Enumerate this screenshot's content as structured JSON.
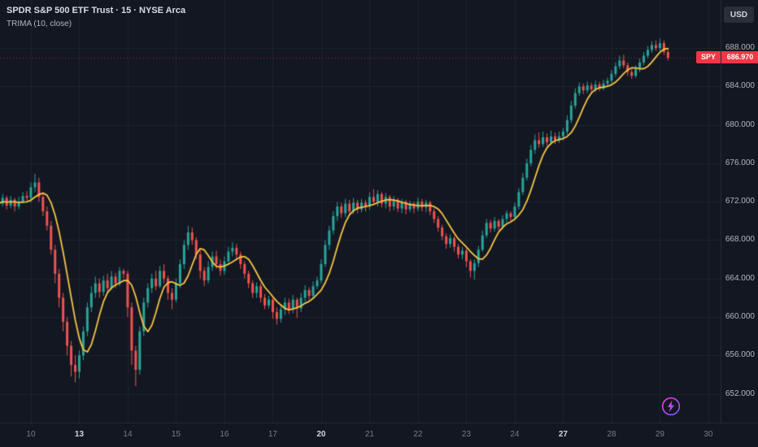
{
  "header": {
    "legend": {
      "title": "SPDR S&P 500 ETF Trust · 15 · NYSE Arca",
      "indicator": "TRIMA (10, close)"
    },
    "currency_button": "USD"
  },
  "icons": {
    "boost": "lightning-bolt-in-circle",
    "boost_gradient": [
      "#f93ae2",
      "#7a5cff"
    ]
  },
  "chart_data": {
    "type": "candlestick",
    "symbol": "SPY",
    "description": "SPDR S&P 500 ETF Trust",
    "interval": "15",
    "exchange": "NYSE Arca",
    "overlay": {
      "name": "TRIMA",
      "period": 10,
      "source": "close",
      "color": "#f5c542"
    },
    "last_price": {
      "symbol": "SPY",
      "value": 686.97,
      "label": "686.970",
      "direction_color": "#f23645"
    },
    "colors": {
      "background": "#131722",
      "grid": "#1e222d",
      "up": "#26a69a",
      "down": "#ef5350",
      "axis_text": "#b2b5be",
      "axis_text_emphasis": "#d1d4dc"
    },
    "y_axis": {
      "ylim": [
        649,
        693
      ],
      "ticks": [
        {
          "value": 688,
          "label": "688.000"
        },
        {
          "value": 684,
          "label": "684.000"
        },
        {
          "value": 680,
          "label": "680.000"
        },
        {
          "value": 676,
          "label": "676.000"
        },
        {
          "value": 672,
          "label": "672.000"
        },
        {
          "value": 668,
          "label": "668.000"
        },
        {
          "value": 664,
          "label": "664.000"
        },
        {
          "value": 660,
          "label": "660.000"
        },
        {
          "value": 656,
          "label": "656.000"
        },
        {
          "value": 652,
          "label": "652.000"
        }
      ]
    },
    "x_axis": {
      "ticks": [
        {
          "label": "10",
          "index": 8,
          "emphasis": false
        },
        {
          "label": "13",
          "index": 20,
          "emphasis": true
        },
        {
          "label": "14",
          "index": 32,
          "emphasis": false
        },
        {
          "label": "15",
          "index": 44,
          "emphasis": false
        },
        {
          "label": "16",
          "index": 56,
          "emphasis": false
        },
        {
          "label": "17",
          "index": 68,
          "emphasis": false
        },
        {
          "label": "20",
          "index": 80,
          "emphasis": true
        },
        {
          "label": "21",
          "index": 92,
          "emphasis": false
        },
        {
          "label": "22",
          "index": 104,
          "emphasis": false
        },
        {
          "label": "23",
          "index": 116,
          "emphasis": false
        },
        {
          "label": "24",
          "index": 128,
          "emphasis": false
        },
        {
          "label": "27",
          "index": 140,
          "emphasis": true
        },
        {
          "label": "28",
          "index": 152,
          "emphasis": false
        },
        {
          "label": "29",
          "index": 164,
          "emphasis": false
        },
        {
          "label": "30",
          "index": 176,
          "emphasis": false
        }
      ]
    },
    "candles": {
      "format": [
        "open",
        "high",
        "low",
        "close"
      ],
      "values": [
        [
          672.3,
          672.8,
          671.4,
          671.8
        ],
        [
          671.8,
          672.8,
          671.5,
          672.4
        ],
        [
          672.4,
          672.6,
          671.2,
          671.6
        ],
        [
          671.6,
          672.6,
          671.3,
          672.2
        ],
        [
          672.2,
          672.4,
          671.0,
          671.5
        ],
        [
          671.5,
          672.5,
          671.2,
          672.0
        ],
        [
          672.0,
          673.0,
          671.8,
          672.6
        ],
        [
          672.6,
          673.1,
          672.1,
          672.4
        ],
        [
          672.4,
          674.0,
          671.9,
          673.5
        ],
        [
          673.5,
          674.9,
          673.0,
          674.0
        ],
        [
          674.0,
          674.5,
          672.0,
          672.5
        ],
        [
          672.5,
          673.0,
          670.5,
          671.0
        ],
        [
          671.0,
          671.5,
          669.0,
          669.5
        ],
        [
          669.5,
          670.0,
          666.5,
          667.0
        ],
        [
          667.0,
          667.5,
          663.5,
          664.5
        ],
        [
          664.5,
          665.0,
          661.0,
          662.0
        ],
        [
          662.0,
          662.5,
          658.5,
          659.5
        ],
        [
          659.5,
          660.0,
          656.0,
          657.0
        ],
        [
          657.0,
          657.5,
          653.8,
          655.0
        ],
        [
          655.0,
          656.0,
          653.2,
          654.3
        ],
        [
          654.3,
          656.5,
          653.6,
          656.0
        ],
        [
          656.0,
          659.0,
          655.5,
          658.5
        ],
        [
          658.5,
          661.5,
          658.0,
          661.0
        ],
        [
          661.0,
          663.2,
          660.5,
          662.5
        ],
        [
          662.5,
          664.2,
          662.0,
          663.5
        ],
        [
          663.5,
          664.0,
          662.0,
          662.6
        ],
        [
          662.6,
          664.3,
          662.2,
          663.8
        ],
        [
          663.8,
          664.5,
          662.5,
          663.0
        ],
        [
          663.0,
          664.8,
          662.8,
          664.2
        ],
        [
          664.2,
          664.6,
          663.0,
          663.5
        ],
        [
          663.5,
          665.2,
          663.2,
          664.8
        ],
        [
          664.8,
          665.0,
          664.0,
          664.5
        ],
        [
          664.5,
          664.8,
          660.0,
          661.0
        ],
        [
          661.0,
          661.5,
          655.0,
          656.5
        ],
        [
          656.5,
          657.0,
          652.8,
          654.5
        ],
        [
          654.5,
          659.0,
          654.0,
          658.5
        ],
        [
          658.5,
          662.0,
          658.0,
          661.5
        ],
        [
          661.5,
          663.5,
          661.0,
          663.0
        ],
        [
          663.0,
          664.5,
          662.5,
          664.0
        ],
        [
          664.0,
          664.8,
          662.8,
          663.2
        ],
        [
          663.2,
          665.3,
          663.0,
          664.8
        ],
        [
          664.8,
          665.5,
          663.5,
          664.0
        ],
        [
          664.0,
          664.3,
          661.8,
          662.5
        ],
        [
          662.5,
          663.0,
          660.8,
          661.8
        ],
        [
          661.8,
          664.0,
          661.5,
          663.5
        ],
        [
          663.5,
          666.0,
          663.0,
          665.5
        ],
        [
          665.5,
          668.0,
          665.0,
          667.5
        ],
        [
          667.5,
          669.5,
          667.0,
          668.8
        ],
        [
          668.8,
          669.3,
          667.5,
          668.0
        ],
        [
          668.0,
          668.3,
          666.0,
          666.5
        ],
        [
          666.5,
          667.0,
          664.0,
          664.8
        ],
        [
          664.8,
          665.2,
          663.2,
          663.8
        ],
        [
          663.8,
          665.8,
          663.5,
          665.2
        ],
        [
          665.2,
          666.8,
          664.8,
          666.3
        ],
        [
          666.3,
          666.9,
          665.0,
          665.5
        ],
        [
          665.5,
          666.0,
          664.3,
          664.8
        ],
        [
          664.8,
          666.3,
          664.4,
          665.8
        ],
        [
          665.8,
          667.3,
          665.5,
          666.8
        ],
        [
          666.8,
          667.8,
          666.3,
          667.2
        ],
        [
          667.2,
          667.6,
          666.0,
          666.5
        ],
        [
          666.5,
          666.8,
          665.0,
          665.5
        ],
        [
          665.5,
          665.8,
          664.0,
          664.5
        ],
        [
          664.5,
          664.8,
          663.0,
          663.5
        ],
        [
          663.5,
          663.8,
          662.0,
          662.5
        ],
        [
          662.5,
          663.6,
          662.0,
          663.2
        ],
        [
          663.2,
          663.5,
          661.5,
          662.0
        ],
        [
          662.0,
          662.4,
          660.8,
          661.2
        ],
        [
          661.2,
          662.2,
          660.9,
          661.8
        ],
        [
          661.8,
          662.0,
          659.8,
          660.5
        ],
        [
          660.5,
          661.0,
          659.2,
          659.8
        ],
        [
          659.8,
          661.3,
          659.4,
          660.8
        ],
        [
          660.8,
          662.0,
          660.2,
          661.5
        ],
        [
          661.5,
          661.9,
          660.3,
          660.8
        ],
        [
          660.8,
          662.3,
          660.4,
          661.8
        ],
        [
          661.8,
          662.0,
          659.9,
          660.9
        ],
        [
          660.9,
          662.5,
          660.5,
          662.0
        ],
        [
          662.0,
          663.3,
          661.6,
          662.8
        ],
        [
          662.8,
          663.1,
          661.8,
          662.2
        ],
        [
          662.2,
          663.7,
          661.9,
          663.2
        ],
        [
          663.2,
          664.2,
          662.9,
          663.8
        ],
        [
          663.8,
          666.0,
          663.5,
          665.5
        ],
        [
          665.5,
          668.0,
          665.2,
          667.5
        ],
        [
          667.5,
          669.5,
          667.0,
          669.0
        ],
        [
          669.0,
          671.0,
          668.6,
          670.5
        ],
        [
          670.5,
          672.0,
          670.0,
          671.5
        ],
        [
          671.5,
          671.9,
          670.3,
          670.8
        ],
        [
          670.8,
          672.3,
          670.4,
          671.8
        ],
        [
          671.8,
          672.2,
          670.6,
          671.0
        ],
        [
          671.0,
          672.4,
          670.7,
          671.9
        ],
        [
          671.9,
          672.2,
          670.8,
          671.2
        ],
        [
          671.2,
          672.3,
          670.9,
          671.9
        ],
        [
          671.9,
          672.2,
          671.0,
          671.5
        ],
        [
          671.5,
          673.0,
          671.2,
          672.5
        ],
        [
          672.5,
          673.3,
          671.6,
          672.0
        ],
        [
          672.0,
          673.2,
          671.5,
          672.8
        ],
        [
          672.8,
          673.0,
          671.4,
          671.8
        ],
        [
          671.8,
          672.9,
          671.3,
          672.5
        ],
        [
          672.5,
          672.7,
          671.0,
          671.5
        ],
        [
          671.5,
          672.6,
          671.1,
          672.2
        ],
        [
          672.2,
          672.4,
          670.9,
          671.3
        ],
        [
          671.3,
          672.3,
          670.8,
          672.0
        ],
        [
          672.0,
          672.2,
          670.7,
          671.2
        ],
        [
          671.2,
          672.1,
          670.9,
          671.8
        ],
        [
          671.8,
          672.0,
          670.8,
          671.3
        ],
        [
          671.3,
          672.4,
          671.0,
          672.0
        ],
        [
          672.0,
          672.3,
          671.0,
          671.4
        ],
        [
          671.4,
          672.2,
          670.9,
          671.9
        ],
        [
          671.9,
          672.1,
          670.6,
          671.0
        ],
        [
          671.0,
          671.3,
          669.8,
          670.2
        ],
        [
          670.2,
          670.5,
          668.9,
          669.3
        ],
        [
          669.3,
          669.6,
          668.0,
          668.4
        ],
        [
          668.4,
          668.7,
          667.1,
          667.6
        ],
        [
          667.6,
          668.6,
          667.2,
          668.2
        ],
        [
          668.2,
          668.4,
          666.8,
          667.3
        ],
        [
          667.3,
          667.6,
          666.1,
          666.5
        ],
        [
          666.5,
          667.3,
          666.0,
          666.9
        ],
        [
          666.9,
          667.1,
          665.2,
          665.8
        ],
        [
          665.8,
          666.0,
          664.1,
          664.8
        ],
        [
          664.8,
          666.0,
          663.9,
          665.6
        ],
        [
          665.6,
          667.4,
          665.2,
          667.0
        ],
        [
          667.0,
          669.0,
          666.8,
          668.5
        ],
        [
          668.5,
          670.2,
          668.2,
          669.8
        ],
        [
          669.8,
          670.1,
          668.8,
          669.2
        ],
        [
          669.2,
          670.4,
          668.9,
          670.0
        ],
        [
          670.0,
          670.2,
          669.0,
          669.4
        ],
        [
          669.4,
          670.6,
          669.1,
          670.2
        ],
        [
          670.2,
          671.1,
          669.8,
          670.8
        ],
        [
          670.8,
          671.0,
          670.0,
          670.4
        ],
        [
          670.4,
          671.9,
          670.1,
          671.5
        ],
        [
          671.5,
          673.4,
          671.2,
          673.0
        ],
        [
          673.0,
          675.0,
          672.7,
          674.5
        ],
        [
          674.5,
          676.5,
          674.2,
          676.0
        ],
        [
          676.0,
          677.9,
          675.7,
          677.4
        ],
        [
          677.4,
          679.0,
          677.0,
          678.4
        ],
        [
          678.4,
          679.2,
          677.6,
          678.0
        ],
        [
          678.0,
          679.3,
          677.7,
          678.7
        ],
        [
          678.7,
          679.1,
          677.8,
          678.2
        ],
        [
          678.2,
          679.4,
          677.9,
          678.8
        ],
        [
          678.8,
          679.2,
          678.0,
          678.4
        ],
        [
          678.4,
          679.3,
          678.1,
          678.8
        ],
        [
          678.8,
          679.7,
          678.4,
          679.3
        ],
        [
          679.3,
          681.0,
          679.0,
          680.5
        ],
        [
          680.5,
          682.5,
          680.2,
          682.0
        ],
        [
          682.0,
          683.8,
          681.7,
          683.3
        ],
        [
          683.3,
          684.4,
          683.0,
          684.0
        ],
        [
          684.0,
          684.3,
          683.2,
          683.6
        ],
        [
          683.6,
          684.5,
          683.3,
          684.1
        ],
        [
          684.1,
          684.4,
          683.4,
          683.7
        ],
        [
          683.7,
          684.6,
          683.4,
          684.2
        ],
        [
          684.2,
          684.5,
          683.5,
          683.8
        ],
        [
          683.8,
          684.7,
          683.6,
          684.3
        ],
        [
          684.3,
          684.9,
          684.0,
          684.6
        ],
        [
          684.6,
          685.7,
          684.3,
          685.3
        ],
        [
          685.3,
          686.5,
          685.0,
          686.1
        ],
        [
          686.1,
          687.2,
          685.8,
          686.7
        ],
        [
          686.7,
          687.3,
          685.9,
          686.2
        ],
        [
          686.2,
          686.5,
          685.1,
          685.5
        ],
        [
          685.5,
          685.8,
          684.8,
          685.1
        ],
        [
          685.1,
          686.2,
          684.9,
          685.8
        ],
        [
          685.8,
          686.9,
          685.5,
          686.5
        ],
        [
          686.5,
          687.6,
          686.2,
          687.2
        ],
        [
          687.2,
          688.2,
          686.9,
          687.8
        ],
        [
          687.8,
          688.7,
          687.5,
          688.3
        ],
        [
          688.3,
          688.8,
          687.7,
          688.0
        ],
        [
          688.0,
          689.0,
          687.7,
          688.5
        ],
        [
          688.5,
          688.8,
          687.3,
          687.6
        ],
        [
          687.6,
          687.9,
          686.7,
          686.97
        ]
      ]
    }
  }
}
